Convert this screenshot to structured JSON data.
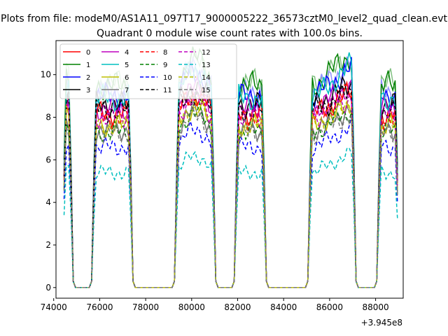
{
  "figure": {
    "suptitle": "Plots from file: modeM0/AS1A11_097T17_9000005222_36573cztM0_level2_quad_clean.evt"
  },
  "chart_data": {
    "type": "line",
    "title": "Quadrant 0 module wise count rates with 100.0s bins.",
    "xlabel": "",
    "ylabel": "",
    "x_offset_label": "+3.945e8",
    "xlim": [
      74100,
      89200
    ],
    "ylim": [
      -0.5,
      11.6
    ],
    "xticks": [
      74000,
      76000,
      78000,
      80000,
      82000,
      84000,
      86000,
      88000
    ],
    "yticks": [
      0,
      2,
      4,
      6,
      8,
      10
    ],
    "grid": false,
    "legend": {
      "placement": "top-left",
      "columns": 4
    },
    "segments": [
      [
        74450,
        74750
      ],
      [
        75750,
        77350
      ],
      [
        79350,
        80950
      ],
      [
        81950,
        83150
      ],
      [
        85150,
        87050
      ],
      [
        88150,
        88950
      ]
    ],
    "series": [
      {
        "name": "0",
        "color": "#ff0000",
        "linestyle": "solid",
        "level": 8.2,
        "peak": 9.3
      },
      {
        "name": "1",
        "color": "#008000",
        "linestyle": "solid",
        "level": 9.5,
        "peak": 11.1
      },
      {
        "name": "2",
        "color": "#0000ff",
        "linestyle": "solid",
        "level": 9.0,
        "peak": 10.4
      },
      {
        "name": "3",
        "color": "#000000",
        "linestyle": "solid",
        "level": 8.6,
        "peak": 9.6
      },
      {
        "name": "4",
        "color": "#bf00bf",
        "linestyle": "solid",
        "level": 8.4,
        "peak": 9.6
      },
      {
        "name": "5",
        "color": "#00bfbf",
        "linestyle": "solid",
        "level": 8.9,
        "peak": 10.6
      },
      {
        "name": "6",
        "color": "#bfbf00",
        "linestyle": "solid",
        "level": 7.6,
        "peak": 8.7
      },
      {
        "name": "7",
        "color": "#777777",
        "linestyle": "solid",
        "level": 7.4,
        "peak": 8.5
      },
      {
        "name": "8",
        "color": "#ff0000",
        "linestyle": "dashed",
        "level": 8.0,
        "peak": 9.3
      },
      {
        "name": "9",
        "color": "#008000",
        "linestyle": "dashed",
        "level": 7.3,
        "peak": 8.4
      },
      {
        "name": "10",
        "color": "#0000ff",
        "linestyle": "dashed",
        "level": 6.6,
        "peak": 7.6
      },
      {
        "name": "11",
        "color": "#000000",
        "linestyle": "dashed",
        "level": 8.3,
        "peak": 9.2
      },
      {
        "name": "12",
        "color": "#bf00bf",
        "linestyle": "dashed",
        "level": 8.0,
        "peak": 9.0
      },
      {
        "name": "13",
        "color": "#00bfbf",
        "linestyle": "dashed",
        "level": 5.4,
        "peak": 6.4
      },
      {
        "name": "14",
        "color": "#bfbf00",
        "linestyle": "dashed",
        "level": 7.6,
        "peak": 8.6
      },
      {
        "name": "15",
        "color": "#777777",
        "linestyle": "dashed",
        "level": 7.2,
        "peak": 8.2
      }
    ],
    "extra_overlay": {
      "color": "#9090ff",
      "level": 9.2,
      "peak": 10.6
    },
    "extra_overlay2": {
      "color": "#80c080",
      "level": 9.6,
      "peak": 10.8
    }
  }
}
